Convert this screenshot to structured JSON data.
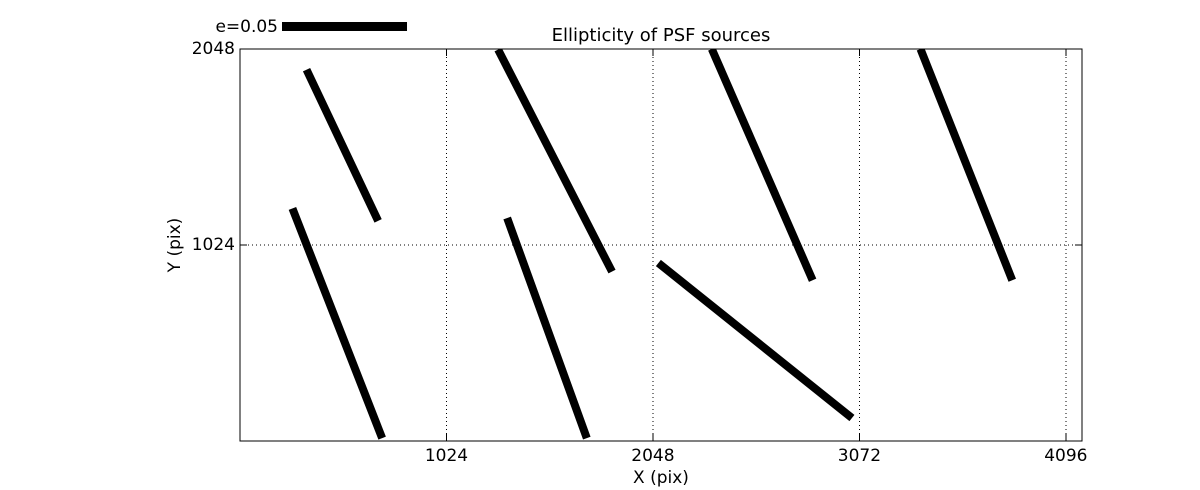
{
  "chart_data": {
    "type": "quiver",
    "title": "Ellipticity of PSF sources",
    "xlabel": "X (pix)",
    "ylabel": "Y (pix)",
    "xlim": [
      0,
      4176
    ],
    "ylim": [
      0,
      2048
    ],
    "xticks": [
      1024,
      2048,
      3072,
      4096
    ],
    "yticks": [
      1024,
      2048
    ],
    "grid": "dotted",
    "legend_position": "top-left",
    "axis_color": "#000000",
    "whisker_color": "#000000",
    "background_color": "#ffffff",
    "legend": {
      "label": "e=0.05",
      "length_data_units": 620
    },
    "segments": [
      {
        "x1": 330,
        "y1": 1940,
        "x2": 685,
        "y2": 1150
      },
      {
        "x1": 260,
        "y1": 1215,
        "x2": 705,
        "y2": 15
      },
      {
        "x1": 1280,
        "y1": 2045,
        "x2": 1845,
        "y2": 885
      },
      {
        "x1": 1325,
        "y1": 1165,
        "x2": 1720,
        "y2": 15
      },
      {
        "x1": 2340,
        "y1": 2048,
        "x2": 2840,
        "y2": 840
      },
      {
        "x1": 2075,
        "y1": 930,
        "x2": 3035,
        "y2": 120
      },
      {
        "x1": 3375,
        "y1": 2048,
        "x2": 3830,
        "y2": 840
      }
    ]
  }
}
